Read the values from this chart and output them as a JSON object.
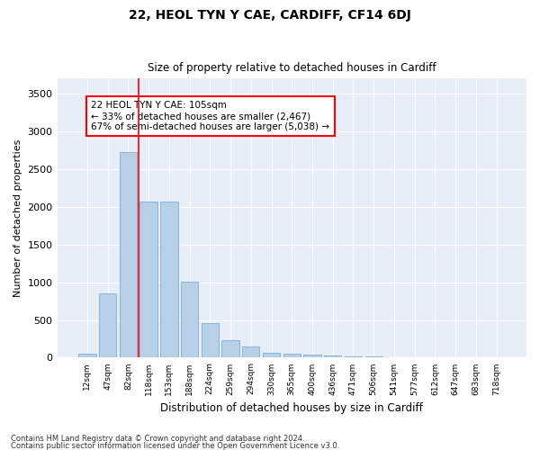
{
  "title1": "22, HEOL TYN Y CAE, CARDIFF, CF14 6DJ",
  "title2": "Size of property relative to detached houses in Cardiff",
  "xlabel": "Distribution of detached houses by size in Cardiff",
  "ylabel": "Number of detached properties",
  "categories": [
    "12sqm",
    "47sqm",
    "82sqm",
    "118sqm",
    "153sqm",
    "188sqm",
    "224sqm",
    "259sqm",
    "294sqm",
    "330sqm",
    "365sqm",
    "400sqm",
    "436sqm",
    "471sqm",
    "506sqm",
    "541sqm",
    "577sqm",
    "612sqm",
    "647sqm",
    "683sqm",
    "718sqm"
  ],
  "values": [
    55,
    850,
    2720,
    2070,
    2070,
    1010,
    460,
    230,
    145,
    65,
    50,
    35,
    25,
    20,
    18,
    10,
    8,
    5,
    3,
    2,
    1
  ],
  "bar_color": "#b8cfe8",
  "bar_edge_color": "#7aafd4",
  "vline_x": 2.5,
  "vline_color": "red",
  "annotation_text": "22 HEOL TYN Y CAE: 105sqm\n← 33% of detached houses are smaller (2,467)\n67% of semi-detached houses are larger (5,038) →",
  "annotation_box_color": "white",
  "annotation_box_edge": "red",
  "ylim": [
    0,
    3700
  ],
  "yticks": [
    0,
    500,
    1000,
    1500,
    2000,
    2500,
    3000,
    3500
  ],
  "bg_color": "#e8eef8",
  "footnote1": "Contains HM Land Registry data © Crown copyright and database right 2024.",
  "footnote2": "Contains public sector information licensed under the Open Government Licence v3.0."
}
